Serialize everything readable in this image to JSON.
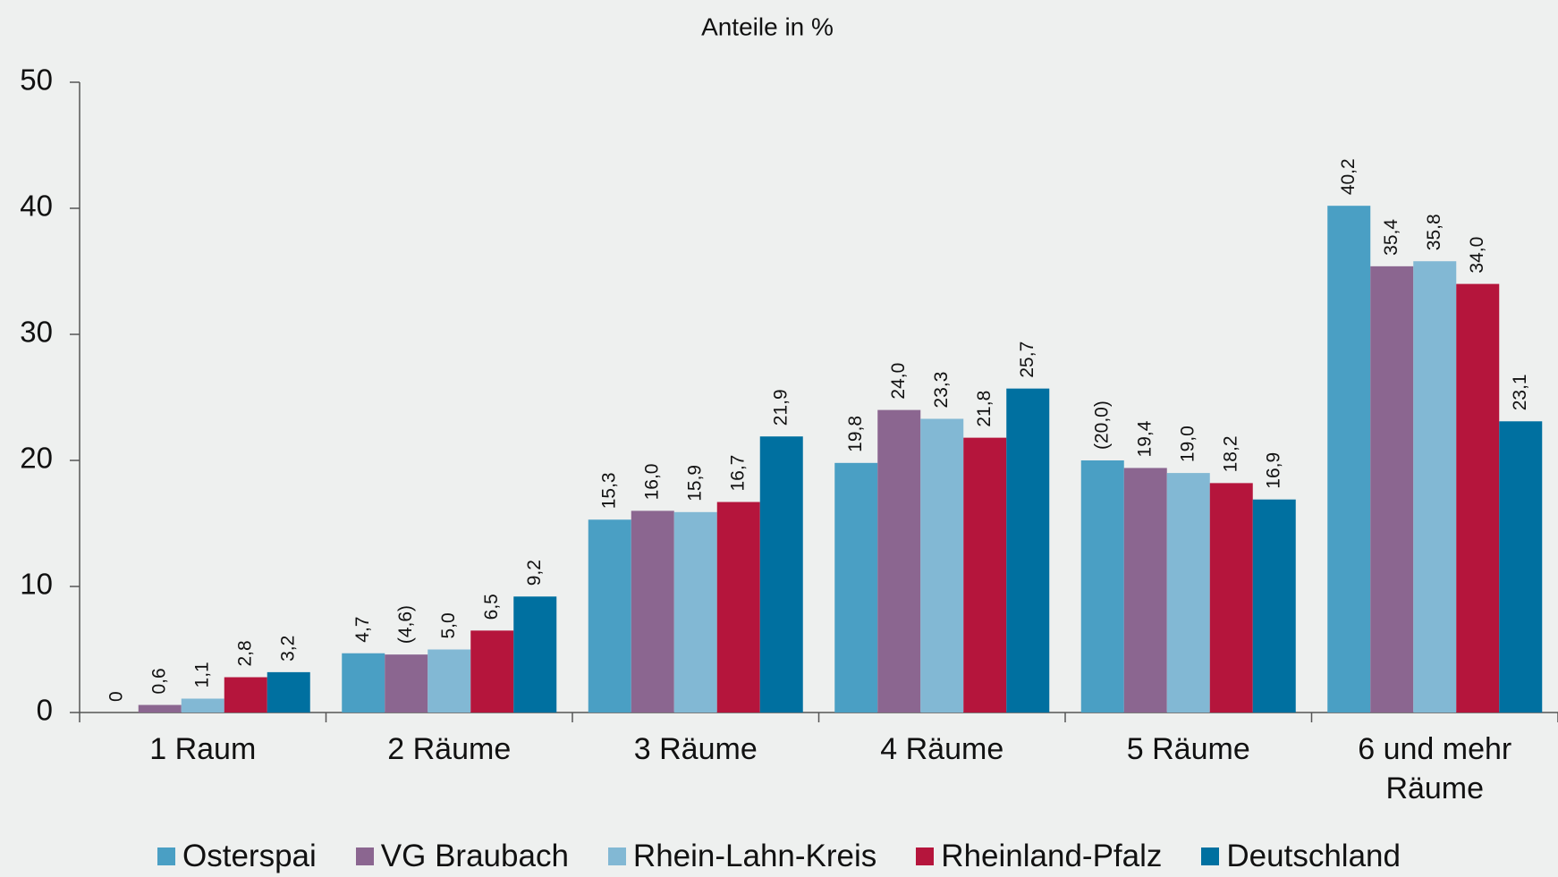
{
  "chart_data": {
    "type": "bar",
    "title": "Anteile in %",
    "categories": [
      "1 Raum",
      "2 Räume",
      "3 Räume",
      "4 Räume",
      "5 Räume",
      "6 und mehr Räume"
    ],
    "series": [
      {
        "name": "Osterspai",
        "color": "#4a9fc4",
        "values": [
          0,
          4.7,
          15.3,
          19.8,
          20.0,
          40.2
        ],
        "value_labels": [
          "0",
          "4,7",
          "15,3",
          "19,8",
          "(20,0)",
          "40,2"
        ]
      },
      {
        "name": "VG Braubach",
        "color": "#8b6690",
        "values": [
          0.6,
          4.6,
          16.0,
          24.0,
          19.4,
          35.4
        ],
        "value_labels": [
          "0,6",
          "(4,6)",
          "16,0",
          "24,0",
          "19,4",
          "35,4"
        ]
      },
      {
        "name": "Rhein-Lahn-Kreis",
        "color": "#82b8d4",
        "values": [
          1.1,
          5.0,
          15.9,
          23.3,
          19.0,
          35.8
        ],
        "value_labels": [
          "1,1",
          "5,0",
          "15,9",
          "23,3",
          "19,0",
          "35,8"
        ]
      },
      {
        "name": "Rheinland-Pfalz",
        "color": "#b5153c",
        "values": [
          2.8,
          6.5,
          16.7,
          21.8,
          18.2,
          34.0
        ],
        "value_labels": [
          "2,8",
          "6,5",
          "16,7",
          "21,8",
          "18,2",
          "34,0"
        ]
      },
      {
        "name": "Deutschland",
        "color": "#0070a0",
        "values": [
          3.2,
          9.2,
          21.9,
          25.7,
          16.9,
          23.1
        ],
        "value_labels": [
          "3,2",
          "9,2",
          "21,9",
          "25,7",
          "16,9",
          "23,1"
        ]
      }
    ],
    "ylim": [
      0,
      50
    ],
    "yticks": [
      0,
      10,
      20,
      30,
      40,
      50
    ],
    "grid": false,
    "legend": "bottom"
  }
}
